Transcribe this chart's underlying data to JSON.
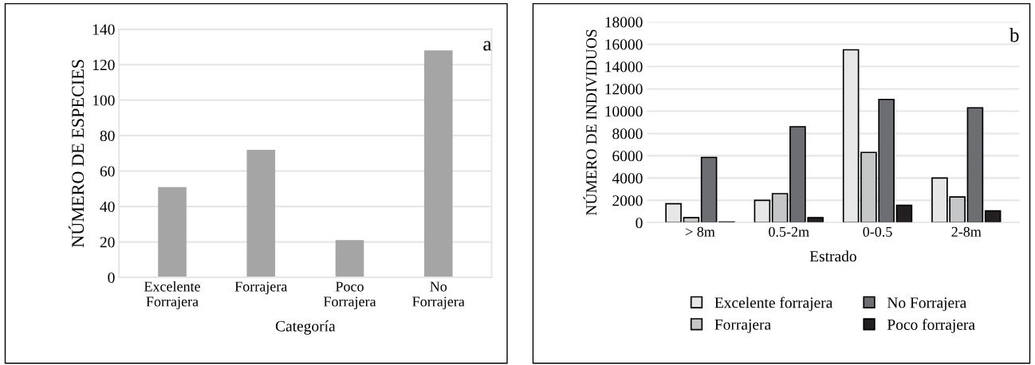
{
  "chart_data": [
    {
      "type": "bar",
      "xlabel": "Categoría",
      "ylabel": "NÚMERO DE ESPECIES",
      "annotations": [
        "a"
      ],
      "categories": [
        "Excelente\nForrajera",
        "Forrajera",
        "Poco\nForrajera",
        "No\nForrajera"
      ],
      "values": [
        51,
        72,
        21,
        128
      ],
      "color": "#a5a5a5",
      "ylim": [
        0,
        140
      ],
      "yticks": [
        0,
        20,
        40,
        60,
        80,
        100,
        120,
        140
      ],
      "grid": "y",
      "legend": false
    },
    {
      "type": "bar",
      "xlabel": "Estrado",
      "ylabel": "NÚMERO DE INDIVIDUOS",
      "annotations": [
        "b"
      ],
      "categories": [
        "> 8m",
        "0.5-2m",
        "0-0.5",
        "2-8m"
      ],
      "ylim": [
        0,
        18000
      ],
      "yticks": [
        0,
        2000,
        4000,
        6000,
        8000,
        10000,
        12000,
        14000,
        16000,
        18000
      ],
      "grid": "y",
      "legend": "bottom",
      "series": [
        {
          "name": "Excelente forrajera",
          "color": "#e7e7e8",
          "values": [
            1700,
            2000,
            15500,
            4000
          ]
        },
        {
          "name": "Forrajera",
          "color": "#c5c6c8",
          "values": [
            450,
            2600,
            6300,
            2300
          ]
        },
        {
          "name": "No Forrajera",
          "color": "#6d6e71",
          "values": [
            5850,
            8600,
            11050,
            10300
          ]
        },
        {
          "name": "Poco forrajera",
          "color": "#231f20",
          "values": [
            50,
            450,
            1550,
            1050
          ]
        }
      ]
    }
  ]
}
